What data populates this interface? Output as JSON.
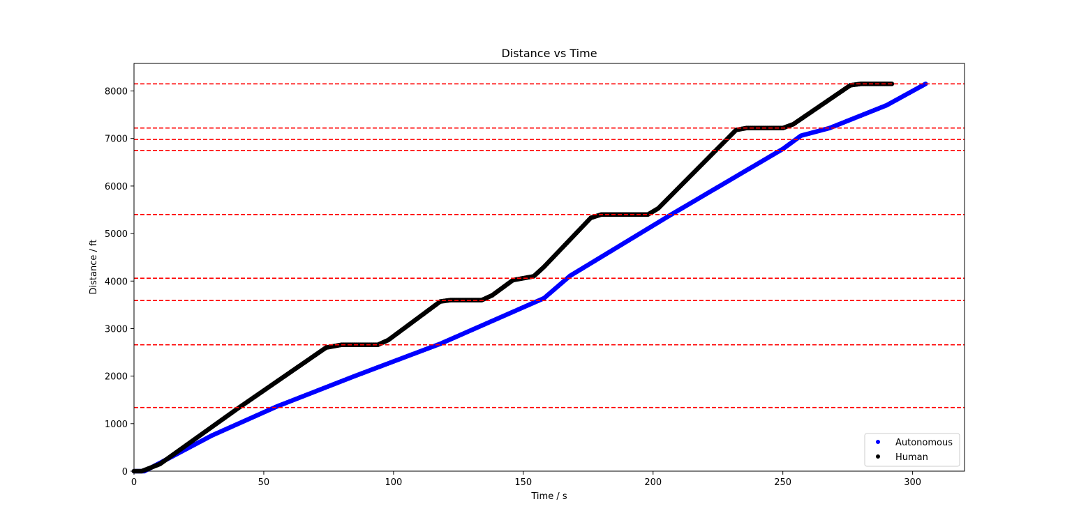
{
  "chart_data": {
    "type": "scatter",
    "title": "Distance vs Time",
    "xlabel": "Time / s",
    "ylabel": "Distance / ft",
    "xlim": [
      0,
      320
    ],
    "ylim": [
      0,
      8580
    ],
    "xticks": [
      0,
      50,
      100,
      150,
      200,
      250,
      300
    ],
    "yticks": [
      0,
      1000,
      2000,
      3000,
      4000,
      5000,
      6000,
      7000,
      8000
    ],
    "grid": false,
    "legend_position": "lower-right",
    "reference_lines": {
      "orientation": "horizontal",
      "style": "dashed",
      "color": "#ff0000",
      "y": [
        1340,
        2660,
        3590,
        4060,
        5400,
        6750,
        6980,
        7220,
        8150
      ]
    },
    "series": [
      {
        "name": "Autonomous",
        "color": "#0000ff",
        "points": [
          [
            0,
            0
          ],
          [
            4,
            0
          ],
          [
            30,
            750
          ],
          [
            55,
            1360
          ],
          [
            85,
            2000
          ],
          [
            118,
            2680
          ],
          [
            158,
            3640
          ],
          [
            168,
            4110
          ],
          [
            207,
            5400
          ],
          [
            250,
            6780
          ],
          [
            257,
            7060
          ],
          [
            268,
            7220
          ],
          [
            290,
            7700
          ],
          [
            305,
            8150
          ]
        ]
      },
      {
        "name": "Human",
        "color": "#000000",
        "points": [
          [
            0,
            0
          ],
          [
            3,
            0
          ],
          [
            10,
            150
          ],
          [
            40,
            1320
          ],
          [
            74,
            2600
          ],
          [
            80,
            2660
          ],
          [
            94,
            2660
          ],
          [
            98,
            2760
          ],
          [
            118,
            3570
          ],
          [
            122,
            3600
          ],
          [
            134,
            3600
          ],
          [
            138,
            3700
          ],
          [
            146,
            4020
          ],
          [
            150,
            4060
          ],
          [
            154,
            4100
          ],
          [
            158,
            4300
          ],
          [
            176,
            5330
          ],
          [
            180,
            5400
          ],
          [
            198,
            5400
          ],
          [
            202,
            5530
          ],
          [
            232,
            7180
          ],
          [
            236,
            7220
          ],
          [
            250,
            7220
          ],
          [
            254,
            7300
          ],
          [
            276,
            8120
          ],
          [
            280,
            8150
          ],
          [
            292,
            8150
          ]
        ]
      }
    ]
  }
}
